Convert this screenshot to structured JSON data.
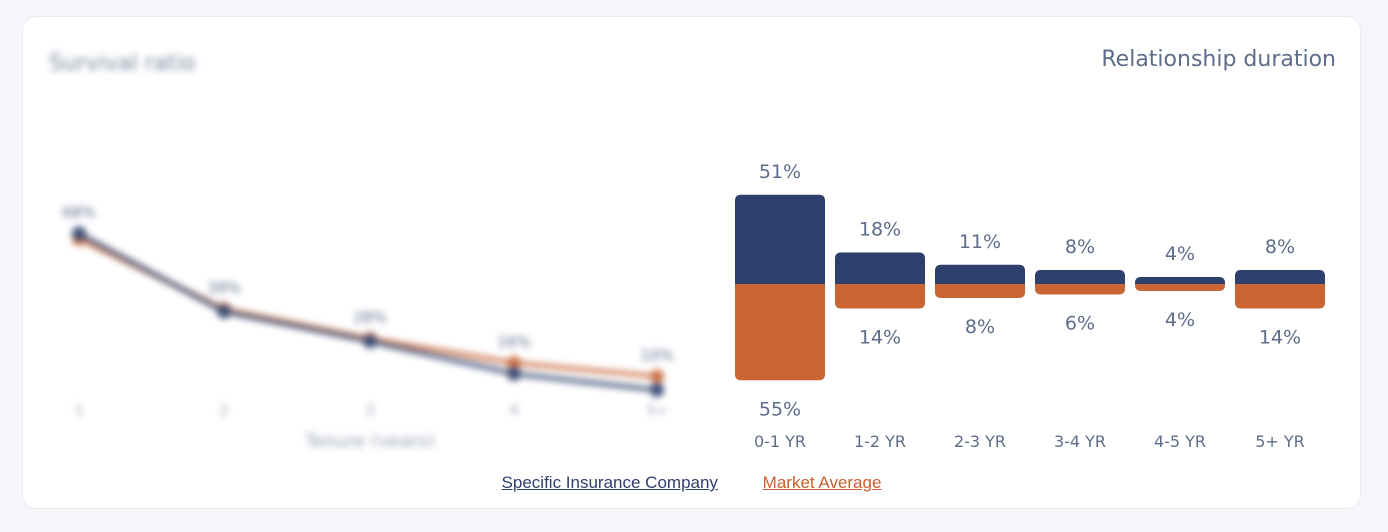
{
  "left_panel": {
    "title": "Survival ratio",
    "xlabel": "Tenure (years)"
  },
  "right_panel": {
    "title": "Relationship duration"
  },
  "legend": {
    "company_label": "Specific Insurance Company",
    "market_label": "Market Average",
    "company_color": "#2d3f6b",
    "market_color": "#c96535"
  },
  "chart_data": [
    {
      "type": "line",
      "title": "Survival ratio",
      "xlabel": "Tenure (years)",
      "ylabel": "",
      "x": [
        "1",
        "2",
        "3",
        "4",
        "5+"
      ],
      "series": [
        {
          "name": "Specific Insurance Company",
          "values": [
            68,
            39,
            28,
            16,
            10
          ],
          "color": "#2d3f6b"
        },
        {
          "name": "Market Average",
          "values": [
            66,
            40,
            29,
            20,
            15
          ],
          "color": "#c96535"
        }
      ],
      "data_labels": [
        "68%",
        "39%",
        "28%",
        "16%",
        "10%"
      ],
      "note": "left chart is blurred in the screenshot; values approximate"
    },
    {
      "type": "bar",
      "title": "Relationship duration",
      "categories": [
        "0-1 YR",
        "1-2 YR",
        "2-3 YR",
        "3-4 YR",
        "4-5 YR",
        "5+ YR"
      ],
      "series": [
        {
          "name": "Specific Insurance Company",
          "values": [
            51,
            18,
            11,
            8,
            4,
            8
          ],
          "labels": [
            "51%",
            "18%",
            "11%",
            "8%",
            "4%",
            "8%"
          ],
          "color": "#2d3f6b",
          "direction": "up"
        },
        {
          "name": "Market Average",
          "values": [
            55,
            14,
            8,
            6,
            4,
            14
          ],
          "labels": [
            "55%",
            "14%",
            "8%",
            "6%",
            "4%",
            "14%"
          ],
          "color": "#c96535",
          "direction": "down"
        }
      ],
      "legend_position": "bottom"
    }
  ]
}
